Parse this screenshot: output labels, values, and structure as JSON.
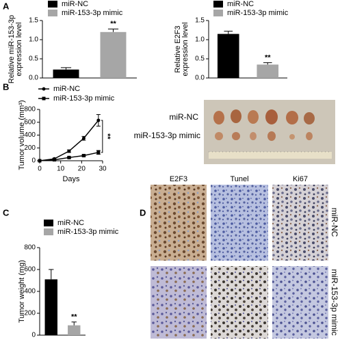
{
  "panel_labels": [
    "A",
    "B",
    "C",
    "D"
  ],
  "chart_data": [
    {
      "type": "bar",
      "y_label": [
        "Relative miR-153-3p",
        "expression level"
      ],
      "categories": [
        "miR-NC",
        "miR-153-3p mimic"
      ],
      "values": [
        0.22,
        1.2
      ],
      "errors": [
        0.05,
        0.08
      ],
      "colors": [
        "#000000",
        "#a6a6a6"
      ],
      "ylim": [
        0,
        1.5
      ],
      "yticks": [
        {
          "value": 0,
          "label": "0.0"
        },
        0.5,
        {
          "value": 1,
          "label": "1.0"
        },
        1.5
      ],
      "annotation": "**"
    },
    {
      "type": "bar",
      "y_label": [
        "Relative E2F3",
        "expression level"
      ],
      "categories": [
        "miR-NC",
        "miR-153-3p mimic"
      ],
      "values": [
        1.15,
        0.35
      ],
      "errors": [
        0.07,
        0.05
      ],
      "colors": [
        "#000000",
        "#a6a6a6"
      ],
      "ylim": [
        0,
        1.5
      ],
      "yticks": [
        {
          "value": 0,
          "label": "0.0"
        },
        0.5,
        {
          "value": 1,
          "label": "1.0"
        },
        1.5
      ],
      "annotation": "**"
    },
    {
      "type": "line",
      "x_label": "Days",
      "y_label": [
        "Tumor volume (mm³)"
      ],
      "x": [
        0,
        7,
        14,
        21,
        28
      ],
      "series": [
        {
          "name": "miR-NC",
          "color": "#000000",
          "marker": "circle",
          "values": [
            0,
            30,
            150,
            350,
            630
          ],
          "errors": [
            0,
            10,
            20,
            30,
            90
          ]
        },
        {
          "name": "miR-153-3p mimic",
          "color": "#000000",
          "marker": "square",
          "values": [
            0,
            15,
            50,
            80,
            130
          ],
          "errors": [
            0,
            5,
            10,
            15,
            30
          ]
        }
      ],
      "xlim": [
        0,
        30
      ],
      "xticks": [
        0,
        10,
        20,
        30
      ],
      "ylim": [
        0,
        800
      ],
      "yticks": [
        0,
        200,
        400,
        600,
        800
      ],
      "annotation": "**"
    },
    {
      "type": "bar",
      "y_label": [
        "Tumor weight (mg)"
      ],
      "categories": [
        "miR-NC",
        "miR-153-3p mimic"
      ],
      "values": [
        510,
        90
      ],
      "errors": [
        90,
        30
      ],
      "colors": [
        "#000000",
        "#a6a6a6"
      ],
      "ylim": [
        0,
        800
      ],
      "yticks": [
        0,
        200,
        400,
        600,
        800
      ],
      "annotation": "**"
    }
  ],
  "tumor_photo": {
    "labels": [
      "miR-NC",
      "miR-153-3p mimic"
    ]
  },
  "histology": {
    "columns": [
      "E2F3",
      "Tunel",
      "Ki67"
    ],
    "rows": [
      "miR-NC",
      "miR-153-3p mimic"
    ]
  }
}
